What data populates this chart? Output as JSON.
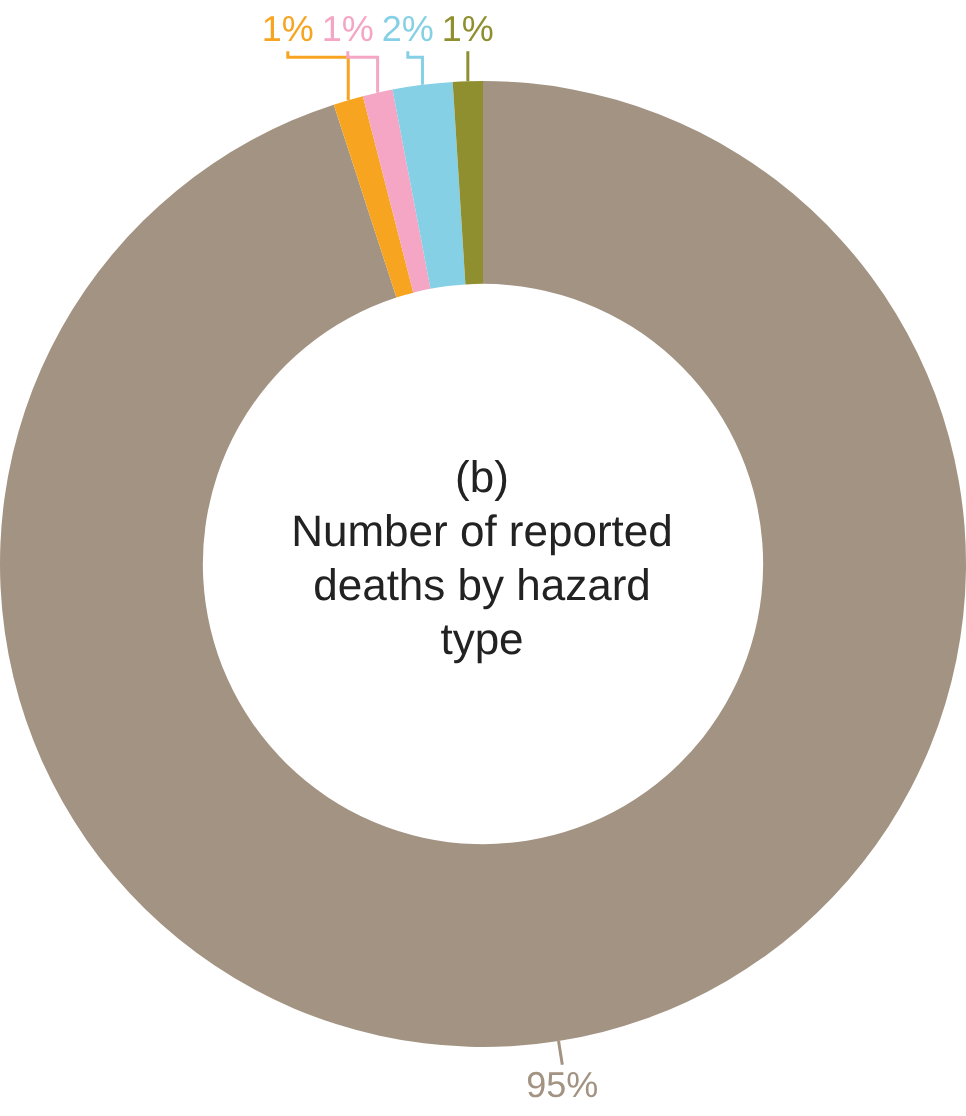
{
  "chart_data": {
    "type": "donut",
    "title": "(b)",
    "subtitle": "Number of reported deaths by hazard type",
    "categories": [
      null,
      null,
      null,
      null,
      null
    ],
    "values": [
      95,
      1,
      1,
      2,
      1
    ],
    "colors": [
      "#a39382",
      "#f7a521",
      "#f4a6c4",
      "#86d0e6",
      "#8f8f2f"
    ],
    "value_labels": [
      "95%",
      "1%",
      "1%",
      "2%",
      "1%"
    ]
  }
}
